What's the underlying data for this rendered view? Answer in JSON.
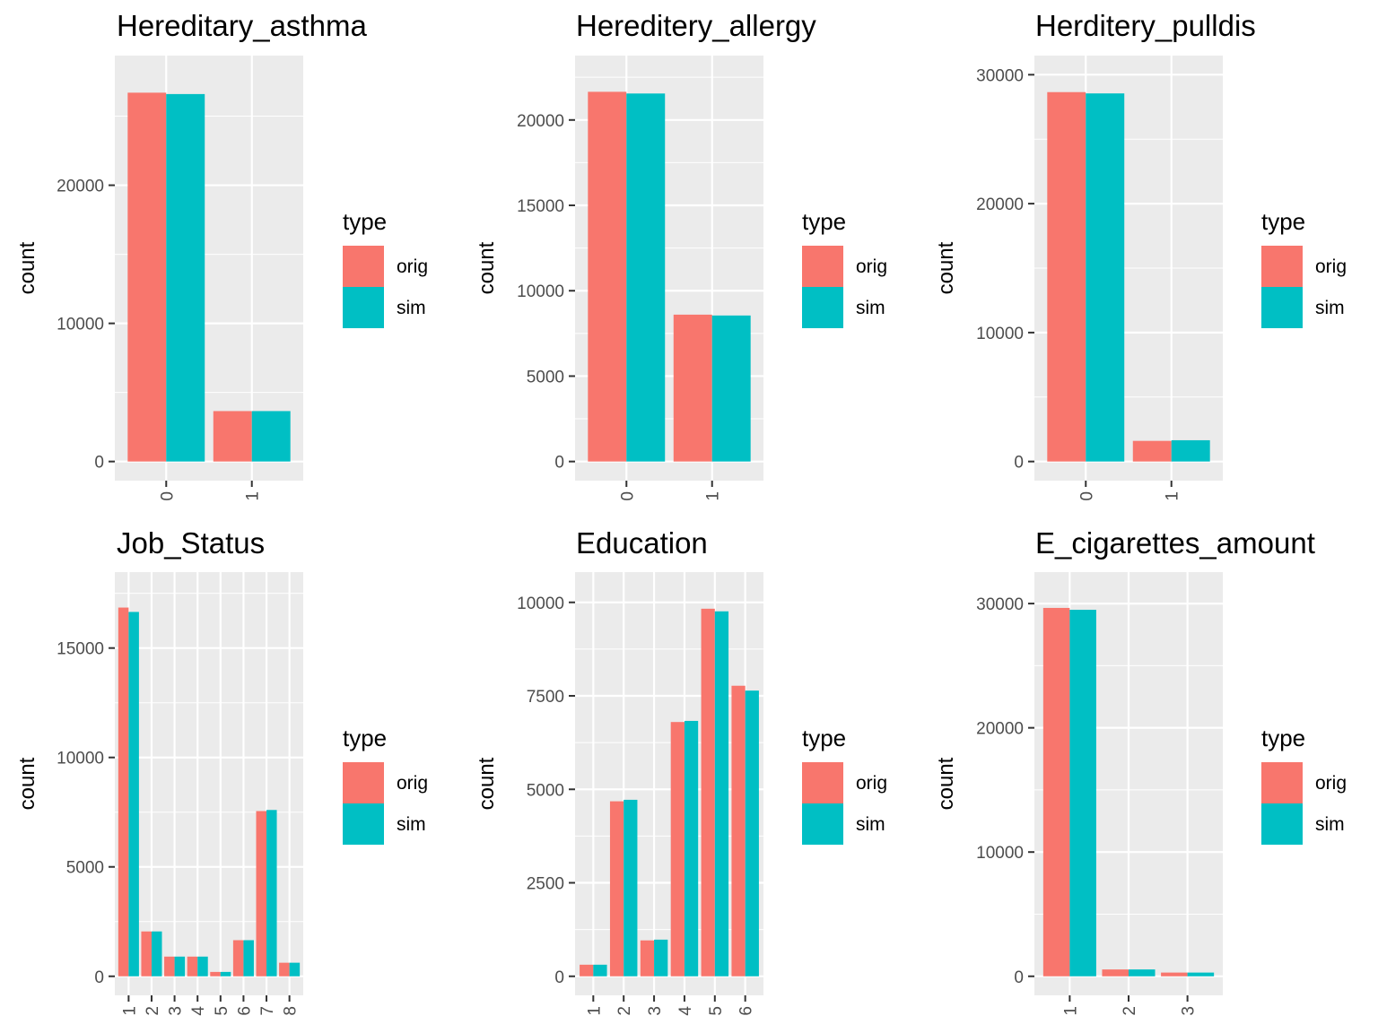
{
  "colors": {
    "panel_bg": "#ebebeb",
    "grid": "#ffffff",
    "orig": "#f8766d",
    "sim": "#00bfc4",
    "tick_text": "#4d4d4d"
  },
  "legend": {
    "title": "type",
    "keys": [
      "orig",
      "sim"
    ]
  },
  "chart_data": [
    {
      "type": "bar",
      "title": "Hereditary_asthma",
      "xlabel": "",
      "ylabel": "count",
      "categories": [
        "0",
        "1"
      ],
      "series": [
        {
          "name": "orig",
          "values": [
            26700,
            3650
          ]
        },
        {
          "name": "sim",
          "values": [
            26600,
            3650
          ]
        }
      ],
      "ylim": [
        0,
        28000
      ],
      "yticks": [
        0,
        10000,
        20000
      ],
      "grid": true,
      "legend_position": "right"
    },
    {
      "type": "bar",
      "title": "Hereditery_allergy",
      "xlabel": "",
      "ylabel": "count",
      "categories": [
        "0",
        "1"
      ],
      "series": [
        {
          "name": "orig",
          "values": [
            21650,
            8600
          ]
        },
        {
          "name": "sim",
          "values": [
            21550,
            8550
          ]
        }
      ],
      "ylim": [
        0,
        22650
      ],
      "yticks": [
        0,
        5000,
        10000,
        15000,
        20000
      ],
      "grid": true,
      "legend_position": "right"
    },
    {
      "type": "bar",
      "title": "Herditery_pulldis",
      "xlabel": "",
      "ylabel": "count",
      "categories": [
        "0",
        "1"
      ],
      "series": [
        {
          "name": "orig",
          "values": [
            28650,
            1600
          ]
        },
        {
          "name": "sim",
          "values": [
            28550,
            1650
          ]
        }
      ],
      "ylim": [
        0,
        30000
      ],
      "yticks": [
        0,
        10000,
        20000,
        30000
      ],
      "grid": true,
      "legend_position": "right"
    },
    {
      "type": "bar",
      "title": "Job_Status",
      "xlabel": "",
      "ylabel": "count",
      "categories": [
        "1",
        "2",
        "3",
        "4",
        "5",
        "6",
        "7",
        "8"
      ],
      "series": [
        {
          "name": "orig",
          "values": [
            16850,
            2050,
            900,
            900,
            200,
            1650,
            7550,
            620
          ]
        },
        {
          "name": "sim",
          "values": [
            16650,
            2050,
            900,
            900,
            200,
            1650,
            7600,
            620
          ]
        }
      ],
      "ylim": [
        0,
        17600
      ],
      "yticks": [
        0,
        5000,
        10000,
        15000
      ],
      "grid": true,
      "legend_position": "right"
    },
    {
      "type": "bar",
      "title": "Education",
      "xlabel": "",
      "ylabel": "count",
      "categories": [
        "1",
        "2",
        "3",
        "4",
        "5",
        "6"
      ],
      "series": [
        {
          "name": "orig",
          "values": [
            310,
            4680,
            960,
            6800,
            9830,
            7770
          ]
        },
        {
          "name": "sim",
          "values": [
            310,
            4720,
            980,
            6830,
            9760,
            7640
          ]
        }
      ],
      "ylim": [
        0,
        10300
      ],
      "yticks": [
        0,
        2500,
        5000,
        7500,
        10000
      ],
      "grid": true,
      "legend_position": "right"
    },
    {
      "type": "bar",
      "title": "E_cigarettes_amount",
      "xlabel": "",
      "ylabel": "count",
      "categories": [
        "1",
        "2",
        "3"
      ],
      "series": [
        {
          "name": "orig",
          "values": [
            29650,
            550,
            300
          ]
        },
        {
          "name": "sim",
          "values": [
            29500,
            550,
            300
          ]
        }
      ],
      "ylim": [
        0,
        31000
      ],
      "yticks": [
        0,
        10000,
        20000,
        30000
      ],
      "grid": true,
      "legend_position": "right"
    }
  ]
}
